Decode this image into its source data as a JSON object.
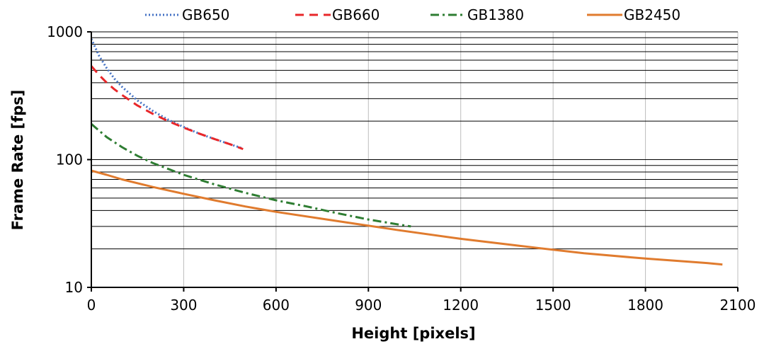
{
  "chart_data": {
    "type": "line",
    "xlabel": "Height [pixels]",
    "ylabel": "Frame Rate [fps]",
    "xlim": [
      0,
      2100
    ],
    "ylim": [
      10,
      1000
    ],
    "yscale": "log",
    "grid": true,
    "legend_position": "top",
    "x_ticks": [
      0,
      300,
      600,
      900,
      1200,
      1500,
      1800,
      2100
    ],
    "x_tick_labels": [
      "0",
      "300",
      "600",
      "900",
      "1200",
      "1500",
      "1800",
      "2100"
    ],
    "y_ticks": [
      10,
      100,
      1000
    ],
    "y_tick_labels": [
      "10",
      "100",
      "1000"
    ],
    "series": [
      {
        "name": "GB650",
        "color": "#4472c4",
        "dash": "dotted",
        "x": [
          0,
          25,
          50,
          75,
          100,
          150,
          200,
          250,
          300,
          350,
          400,
          450,
          493
        ],
        "y": [
          880,
          650,
          520,
          430,
          370,
          290,
          240,
          205,
          180,
          160,
          145,
          132,
          122
        ]
      },
      {
        "name": "GB660",
        "color": "#e8272a",
        "dash": "dashed",
        "x": [
          0,
          25,
          50,
          75,
          100,
          150,
          200,
          250,
          300,
          350,
          400,
          450,
          493
        ],
        "y": [
          540,
          460,
          400,
          355,
          320,
          265,
          228,
          200,
          178,
          160,
          145,
          132,
          121
        ]
      },
      {
        "name": "GB1380",
        "color": "#2e7d32",
        "dash": "dashdot",
        "x": [
          0,
          50,
          100,
          150,
          200,
          300,
          400,
          500,
          600,
          700,
          800,
          900,
          1000,
          1038
        ],
        "y": [
          190,
          150,
          125,
          107,
          94,
          76,
          64,
          55,
          48,
          43,
          38,
          34,
          31,
          30
        ]
      },
      {
        "name": "GB2450",
        "color": "#e07b2e",
        "dash": "solid",
        "x": [
          0,
          50,
          100,
          200,
          300,
          400,
          500,
          600,
          800,
          1000,
          1200,
          1400,
          1600,
          1800,
          2000,
          2050
        ],
        "y": [
          82,
          76,
          70,
          61,
          54,
          48,
          43,
          39,
          33,
          28,
          24,
          21,
          18.5,
          16.8,
          15.5,
          15.1
        ]
      }
    ]
  }
}
